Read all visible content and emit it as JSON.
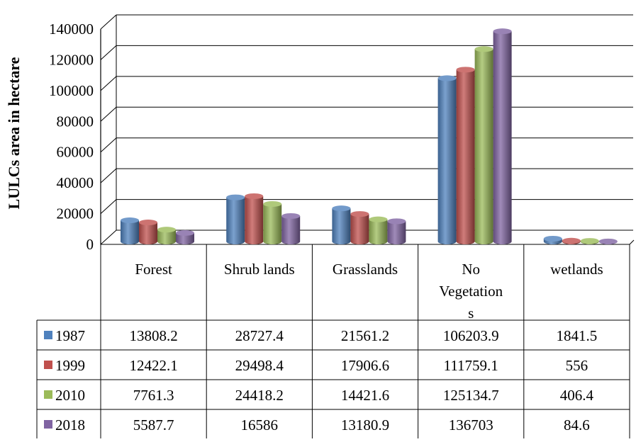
{
  "chart_data": {
    "type": "bar",
    "title": "",
    "xlabel": "",
    "ylabel": "LULCs area in hectare",
    "ylim": [
      0,
      140000
    ],
    "yticks": [
      0,
      20000,
      40000,
      60000,
      80000,
      100000,
      120000,
      140000
    ],
    "grid": true,
    "legend": "data table rows",
    "categories": [
      "Forest",
      "Shrub lands",
      "Grasslands",
      "No Vegetation s",
      "wetlands"
    ],
    "category_lines": [
      [
        "Forest"
      ],
      [
        "Shrub lands"
      ],
      [
        "Grasslands"
      ],
      [
        "No",
        "Vegetation",
        "s"
      ],
      [
        "wetlands"
      ]
    ],
    "series": [
      {
        "name": "1987",
        "color": "#4f81bd",
        "values": [
          13808.2,
          28727.4,
          21561.2,
          106203.9,
          1841.5
        ]
      },
      {
        "name": "1999",
        "color": "#c0504d",
        "values": [
          12422.1,
          29498.4,
          17906.6,
          111759.1,
          556
        ]
      },
      {
        "name": "2010",
        "color": "#9bbb59",
        "values": [
          7761.3,
          24418.2,
          14421.6,
          125134.7,
          406.4
        ]
      },
      {
        "name": "2018",
        "color": "#8064a2",
        "values": [
          5587.7,
          16586,
          13180.9,
          136703,
          84.6
        ]
      }
    ],
    "table_values": [
      [
        "13808.2",
        "28727.4",
        "21561.2",
        "106203.9",
        "1841.5"
      ],
      [
        "12422.1",
        "29498.4",
        "17906.6",
        "111759.1",
        "556"
      ],
      [
        "7761.3",
        "24418.2",
        "14421.6",
        "125134.7",
        "406.4"
      ],
      [
        "5587.7",
        "16586",
        "13180.9",
        "136703",
        "84.6"
      ]
    ]
  }
}
